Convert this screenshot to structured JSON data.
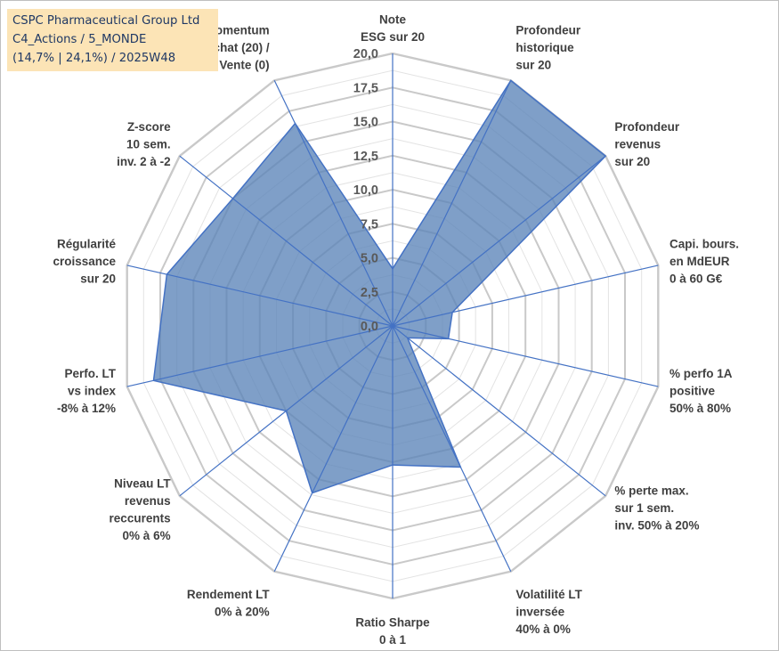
{
  "chart_data": {
    "type": "radar",
    "title_lines": [
      "CSPC Pharmaceutical Group Ltd",
      "C4_Actions / 5_MONDE",
      "(14,7% | 24,1%) / 2025W48"
    ],
    "rlim": [
      0,
      20
    ],
    "tick_labels": [
      "0,0",
      "2,5",
      "5,0",
      "7,5",
      "10,0",
      "12,5",
      "15,0",
      "17,5",
      "20,0"
    ],
    "categories": [
      [
        "Note",
        "ESG sur 20"
      ],
      [
        "Profondeur",
        "historique",
        "sur 20"
      ],
      [
        "Profondeur",
        "revenus",
        "sur 20"
      ],
      [
        "Capi. bours.",
        "en MdEUR",
        "0 à 60 G€"
      ],
      [
        "% perfo 1A",
        "positive",
        "50% à 80%"
      ],
      [
        "% perte max.",
        "sur 1 sem.",
        "inv. 50% à 20%"
      ],
      [
        "Volatilité LT",
        "inversée",
        "40% à 0%"
      ],
      [
        "Ratio Sharpe",
        "0 à 1"
      ],
      [
        "Rendement LT",
        "0% à 20%"
      ],
      [
        "Niveau LT",
        "revenus",
        "reccurents",
        "0% à 6%"
      ],
      [
        "Perfo. LT",
        "vs index",
        "-8% à 12%"
      ],
      [
        "Régularité",
        "croissance",
        "sur 20"
      ],
      [
        "Z-score",
        "10 sem.",
        "inv. 2 à -2"
      ],
      [
        "Momentum",
        "Achat (20) /",
        "Vente (0)"
      ]
    ],
    "series": [
      {
        "values": [
          4.2,
          20.0,
          20.0,
          4.5,
          4.2,
          1.4,
          11.5,
          10.2,
          13.6,
          10.0,
          18.0,
          17.0,
          15.0,
          16.5
        ]
      }
    ],
    "colors": {
      "fill": "#5b84b8",
      "fill_opacity": 0.78,
      "edge": "#4472c4",
      "spoke": "#4472c4",
      "grid": "#c9c9c9",
      "inner_grid": "#e3e3e3",
      "title_bg": "#fce4b6",
      "title_text": "#1f3864"
    },
    "grid": true,
    "legend": "none"
  }
}
